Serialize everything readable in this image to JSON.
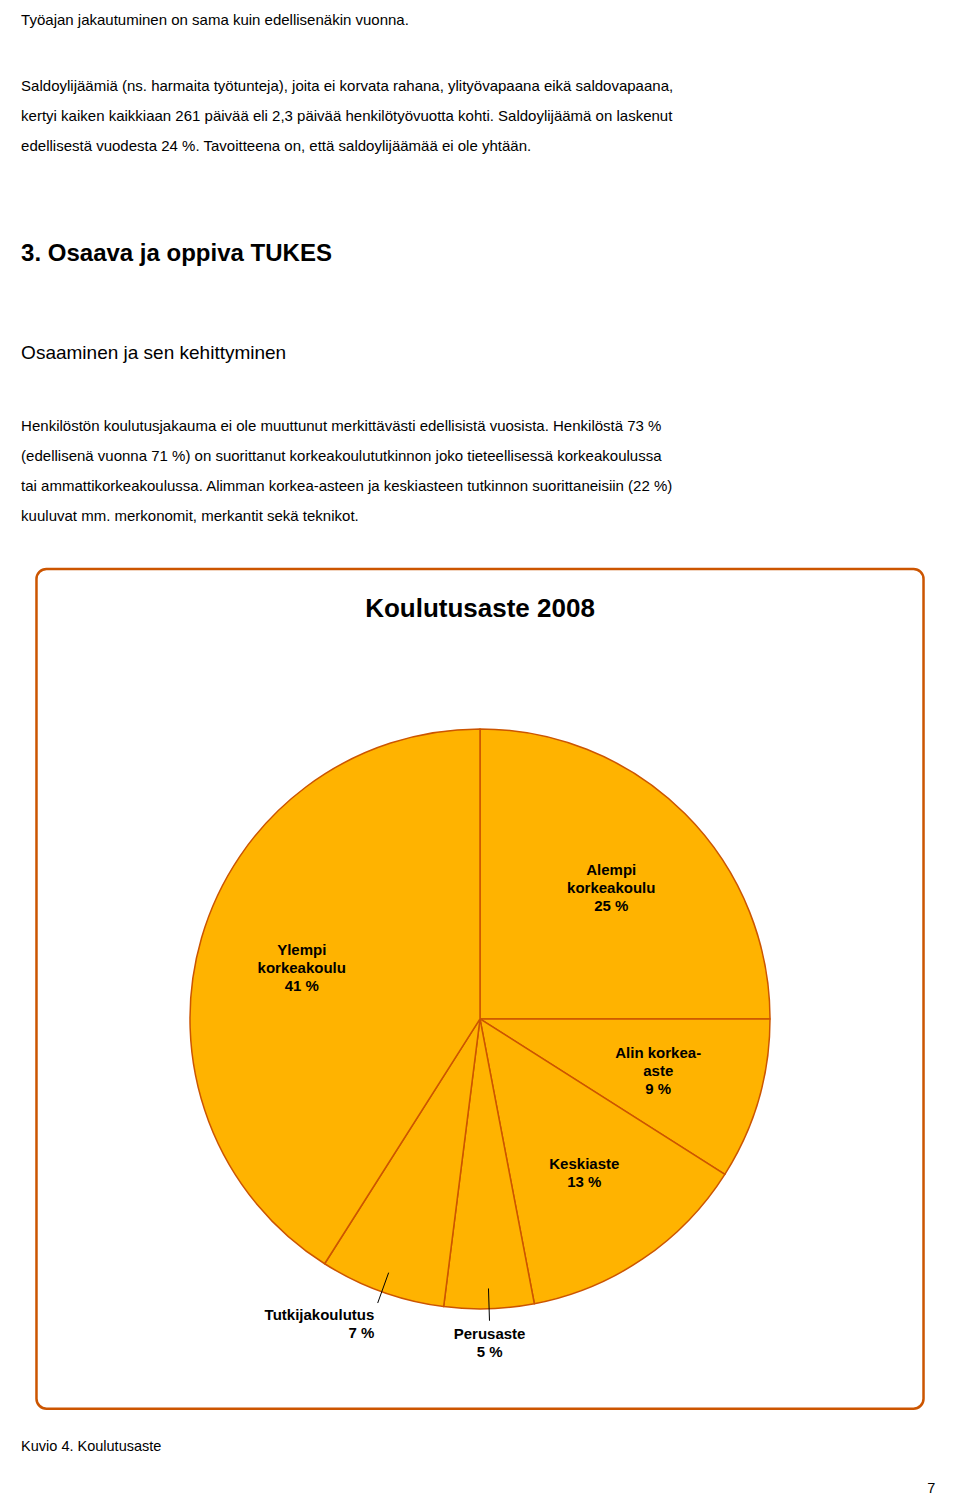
{
  "page_text": [
    "Työajan jakautuminen on sama kuin edellisenäkin vuonna.",
    "Saldoylijäämiä (ns. harmaita työtunteja), joita ei korvata rahana, ylityövapaana eikä saldovapaana,",
    "kertyi kaiken kaikkiaan 261 päivää eli 2,3 päivää henkilötyövuotta kohti. Saldoylijäämä on laskenut",
    "edellisestä vuodesta 24 %. Tavoitteena on, että saldoylijäämää ei ole yhtään.",
    "3. Osaava ja oppiva TUKES",
    "Osaaminen ja sen kehittyminen",
    "Henkilöstön koulutusjakauma ei ole muuttunut merkittävästi edellisistä vuosista. Henkilöstä 73 %",
    "(edellisenä vuonna 71 %) on suorittanut korkeakoulututkinnon joko tieteellisessä korkeakoulussa",
    "tai ammattikorkeakoulussa. Alimman korkea-asteen ja keskiasteen tutkinnon suorittaneisiin (22 %)",
    "kuuluvat mm. merkonomit, merkantit sekä teknikot.",
    "Kuvio 4. Koulutusaste",
    "7"
  ],
  "chart_data": {
    "type": "pie",
    "title": "Koulutusaste 2008",
    "categories": [
      "Alempi\nkorkeakoulu",
      "Alin korkea-\naste",
      "Keskiaste",
      "Perusaste",
      "Tutkijakoulutus",
      "Ylempi\nkorkeakoulu"
    ],
    "values": [
      25,
      9,
      13,
      5,
      7,
      41
    ],
    "value_labels": [
      "25 %",
      "9 %",
      "13 %",
      "5 %",
      "7 %",
      "41 %"
    ],
    "colors": [
      "#FFB300",
      "#FFB300",
      "#FFB300",
      "#FFB300",
      "#FFB300",
      "#FFB300"
    ],
    "data_labels": true
  }
}
